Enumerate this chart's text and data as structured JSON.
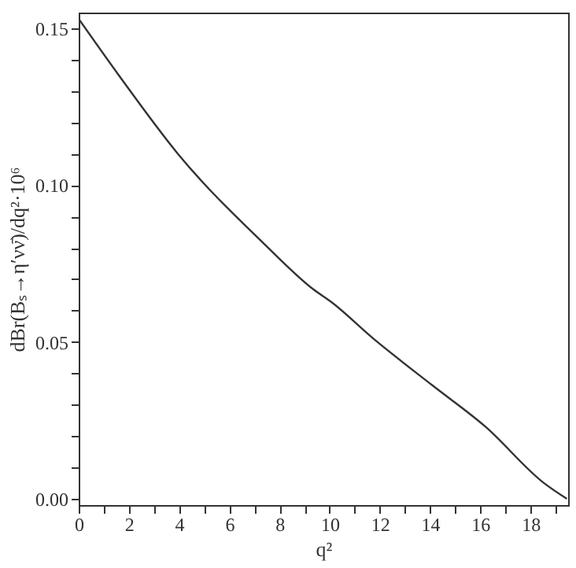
{
  "chart_data": {
    "type": "line",
    "xlabel": "q²",
    "ylabel": "dBr(Bₛ→η′νν̄)/dq²·10⁶",
    "x": [
      0,
      1.6,
      3.95,
      7.36,
      9.36,
      10.07,
      11.72,
      14.07,
      16.19,
      18.54,
      19.45
    ],
    "series": [
      {
        "color": "#333333",
        "values": [
          0.153,
          0.135,
          0.11,
          0.0815,
          0.0667,
          0.0627,
          0.0512,
          0.0363,
          0.0231,
          0.005,
          0.0
        ]
      }
    ],
    "xlim": [
      0,
      19.5
    ],
    "xticks": [
      0,
      {
        "value": 1,
        "label": null
      },
      2,
      {
        "value": 3,
        "label": null
      },
      4,
      {
        "value": 5,
        "label": null
      },
      6,
      {
        "value": 7,
        "label": null
      },
      8,
      {
        "value": 9,
        "label": null
      },
      10,
      {
        "value": 11,
        "label": null
      },
      12,
      {
        "value": 13,
        "label": null
      },
      14,
      {
        "value": 15,
        "label": null
      },
      16,
      {
        "value": 17,
        "label": null
      },
      18,
      {
        "value": 19,
        "label": null
      }
    ],
    "ylim": [
      -0.002,
      0.155
    ],
    "yticks": [
      {
        "value": 0,
        "label": "0.00"
      },
      {
        "value": 0.01,
        "label": null
      },
      {
        "value": 0.02,
        "label": null
      },
      {
        "value": 0.03,
        "label": null
      },
      {
        "value": 0.04,
        "label": null
      },
      {
        "value": 0.05,
        "label": "0.05"
      },
      {
        "value": 0.06,
        "label": null
      },
      {
        "value": 0.07,
        "label": null
      },
      {
        "value": 0.08,
        "label": null
      },
      {
        "value": 0.09,
        "label": null
      },
      {
        "value": 0.1,
        "label": "0.10"
      },
      {
        "value": 0.11,
        "label": null
      },
      {
        "value": 0.12,
        "label": null
      },
      {
        "value": 0.13,
        "label": null
      },
      {
        "value": 0.14,
        "label": null
      },
      {
        "value": 0.15,
        "label": "0.15"
      }
    ],
    "grid": false,
    "marker": "none",
    "line_style": "solid"
  }
}
